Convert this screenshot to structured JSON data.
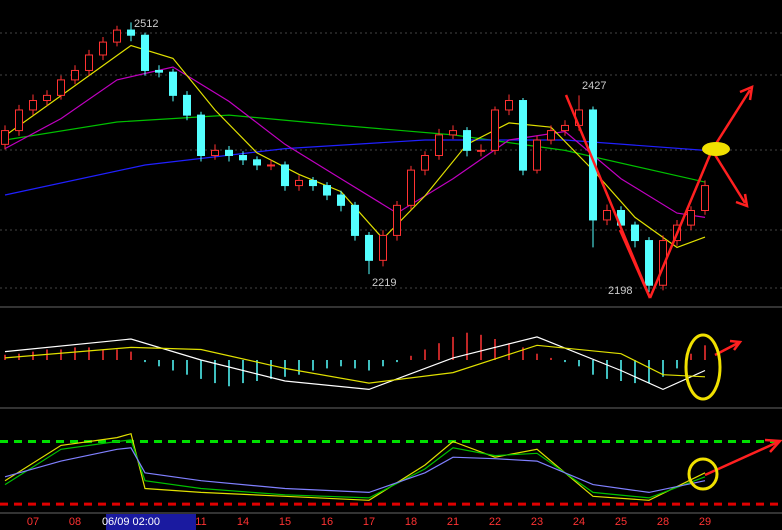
{
  "chart_data": {
    "type": "candlestick",
    "categories": [
      null,
      null,
      "07",
      null,
      null,
      "08",
      null,
      null,
      null,
      "06/09 02:00",
      null,
      null,
      null,
      null,
      "11",
      null,
      null,
      "14",
      null,
      null,
      "15",
      null,
      null,
      "16",
      null,
      null,
      "17",
      null,
      null,
      "18",
      null,
      null,
      "21",
      null,
      null,
      "22",
      null,
      null,
      "23",
      null,
      null,
      "24",
      null,
      null,
      "25",
      null,
      null,
      "28",
      null,
      null,
      "29"
    ],
    "open": [
      2370,
      2386,
      2410,
      2421,
      2427,
      2445,
      2456,
      2474,
      2489,
      2503,
      2497,
      2456,
      2454,
      2427,
      2404,
      2357,
      2363,
      2357,
      2352,
      2346,
      2346,
      2322,
      2328,
      2322,
      2311,
      2299,
      2264,
      2235,
      2264,
      2299,
      2340,
      2357,
      2381,
      2386,
      2363,
      2363,
      2410,
      2421,
      2340,
      2375,
      2386,
      2392,
      2410,
      2282,
      2293,
      2276,
      2258,
      2206,
      2258,
      2276,
      2293
    ],
    "high": [
      2392,
      2416,
      2428,
      2433,
      2450,
      2462,
      2480,
      2495,
      2508,
      2512,
      2500,
      2462,
      2458,
      2432,
      2408,
      2370,
      2368,
      2362,
      2356,
      2352,
      2350,
      2334,
      2332,
      2326,
      2316,
      2303,
      2268,
      2270,
      2304,
      2345,
      2362,
      2388,
      2392,
      2390,
      2370,
      2414,
      2428,
      2424,
      2380,
      2392,
      2398,
      2427,
      2414,
      2300,
      2298,
      2280,
      2262,
      2264,
      2282,
      2298,
      2328
    ],
    "low": [
      2364,
      2380,
      2404,
      2415,
      2422,
      2440,
      2450,
      2468,
      2484,
      2490,
      2450,
      2448,
      2420,
      2398,
      2350,
      2352,
      2350,
      2346,
      2340,
      2340,
      2316,
      2316,
      2316,
      2305,
      2292,
      2258,
      2219,
      2228,
      2258,
      2294,
      2334,
      2352,
      2376,
      2356,
      2356,
      2358,
      2404,
      2334,
      2336,
      2370,
      2380,
      2386,
      2250,
      2276,
      2270,
      2250,
      2198,
      2200,
      2252,
      2270,
      2288
    ],
    "close": [
      2386,
      2410,
      2421,
      2427,
      2445,
      2456,
      2474,
      2489,
      2503,
      2497,
      2456,
      2454,
      2427,
      2404,
      2357,
      2363,
      2357,
      2352,
      2346,
      2346,
      2322,
      2328,
      2322,
      2311,
      2299,
      2264,
      2235,
      2264,
      2299,
      2340,
      2357,
      2381,
      2386,
      2363,
      2363,
      2410,
      2421,
      2340,
      2375,
      2386,
      2392,
      2410,
      2282,
      2293,
      2276,
      2258,
      2206,
      2258,
      2276,
      2293,
      2322
    ],
    "up_color": "#ff3232",
    "down_color": "#54ffff",
    "ylim": [
      2183,
      2538
    ],
    "ma_lines": [
      {
        "color": "#00c000",
        "x": [
          0,
          8,
          16,
          24,
          32,
          40,
          50
        ],
        "values": [
          2375,
          2396,
          2404,
          2392,
          2381,
          2363,
          2326
        ]
      },
      {
        "color": "#2020ff",
        "x": [
          0,
          10,
          20,
          30,
          40,
          50
        ],
        "values": [
          2311,
          2346,
          2365,
          2375,
          2375,
          2363
        ]
      },
      {
        "color": "#c000c0",
        "x": [
          0,
          4,
          8,
          12,
          16,
          20,
          24,
          28,
          32,
          36,
          40,
          44,
          48,
          50
        ],
        "values": [
          2365,
          2400,
          2445,
          2460,
          2420,
          2370,
          2330,
          2290,
          2330,
          2375,
          2385,
          2330,
          2290,
          2285
        ]
      },
      {
        "color": "#e0e000",
        "x": [
          0,
          3,
          6,
          9,
          12,
          15,
          18,
          21,
          24,
          27,
          30,
          33,
          36,
          39,
          42,
          45,
          48,
          50
        ],
        "values": [
          2380,
          2415,
          2450,
          2485,
          2470,
          2410,
          2360,
          2335,
          2315,
          2260,
          2310,
          2370,
          2395,
          2390,
          2340,
          2285,
          2250,
          2262
        ]
      }
    ],
    "macd": {
      "ylim": [
        -40,
        40
      ],
      "histogram": [
        5,
        6,
        8,
        10,
        10,
        12,
        12,
        10,
        10,
        8,
        -2,
        -6,
        -10,
        -14,
        -18,
        -22,
        -25,
        -22,
        -20,
        -18,
        -16,
        -14,
        -10,
        -8,
        -6,
        -8,
        -10,
        -6,
        -2,
        4,
        10,
        16,
        22,
        26,
        24,
        20,
        16,
        12,
        6,
        2,
        -2,
        -6,
        -14,
        -18,
        -20,
        -22,
        -22,
        -16,
        -8,
        6,
        14
      ],
      "lines": [
        {
          "color": "#ffffff",
          "x": [
            0,
            9,
            14,
            20,
            26,
            32,
            38,
            44,
            47,
            50
          ],
          "values": [
            8,
            20,
            0,
            -20,
            -28,
            2,
            22,
            -10,
            -28,
            -10
          ]
        },
        {
          "color": "#e0e000",
          "x": [
            0,
            9,
            14,
            20,
            26,
            32,
            38,
            44,
            47,
            50
          ],
          "values": [
            2,
            12,
            10,
            -8,
            -22,
            -12,
            14,
            6,
            -14,
            -16
          ]
        }
      ]
    },
    "kdj": {
      "ylim": [
        -10,
        110
      ],
      "levels": [
        {
          "value": 80,
          "color": "#00e000"
        },
        {
          "value": 0,
          "color": "#e00000"
        }
      ],
      "lines": [
        {
          "color": "#e0e000",
          "x": [
            0,
            4,
            8,
            9,
            10,
            14,
            20,
            26,
            30,
            32,
            35,
            38,
            42,
            46,
            50
          ],
          "values": [
            30,
            75,
            85,
            90,
            20,
            15,
            10,
            5,
            50,
            80,
            60,
            70,
            10,
            5,
            40
          ]
        },
        {
          "color": "#00c000",
          "x": [
            0,
            4,
            8,
            9,
            10,
            14,
            20,
            26,
            30,
            32,
            35,
            38,
            42,
            46,
            50
          ],
          "values": [
            25,
            70,
            80,
            82,
            30,
            20,
            12,
            8,
            45,
            72,
            62,
            65,
            15,
            8,
            35
          ]
        },
        {
          "color": "#8080ff",
          "x": [
            0,
            4,
            8,
            9,
            10,
            14,
            20,
            26,
            30,
            32,
            35,
            38,
            42,
            46,
            50
          ],
          "values": [
            35,
            55,
            70,
            72,
            40,
            30,
            20,
            15,
            40,
            60,
            58,
            55,
            25,
            15,
            30
          ]
        }
      ]
    }
  }
}
